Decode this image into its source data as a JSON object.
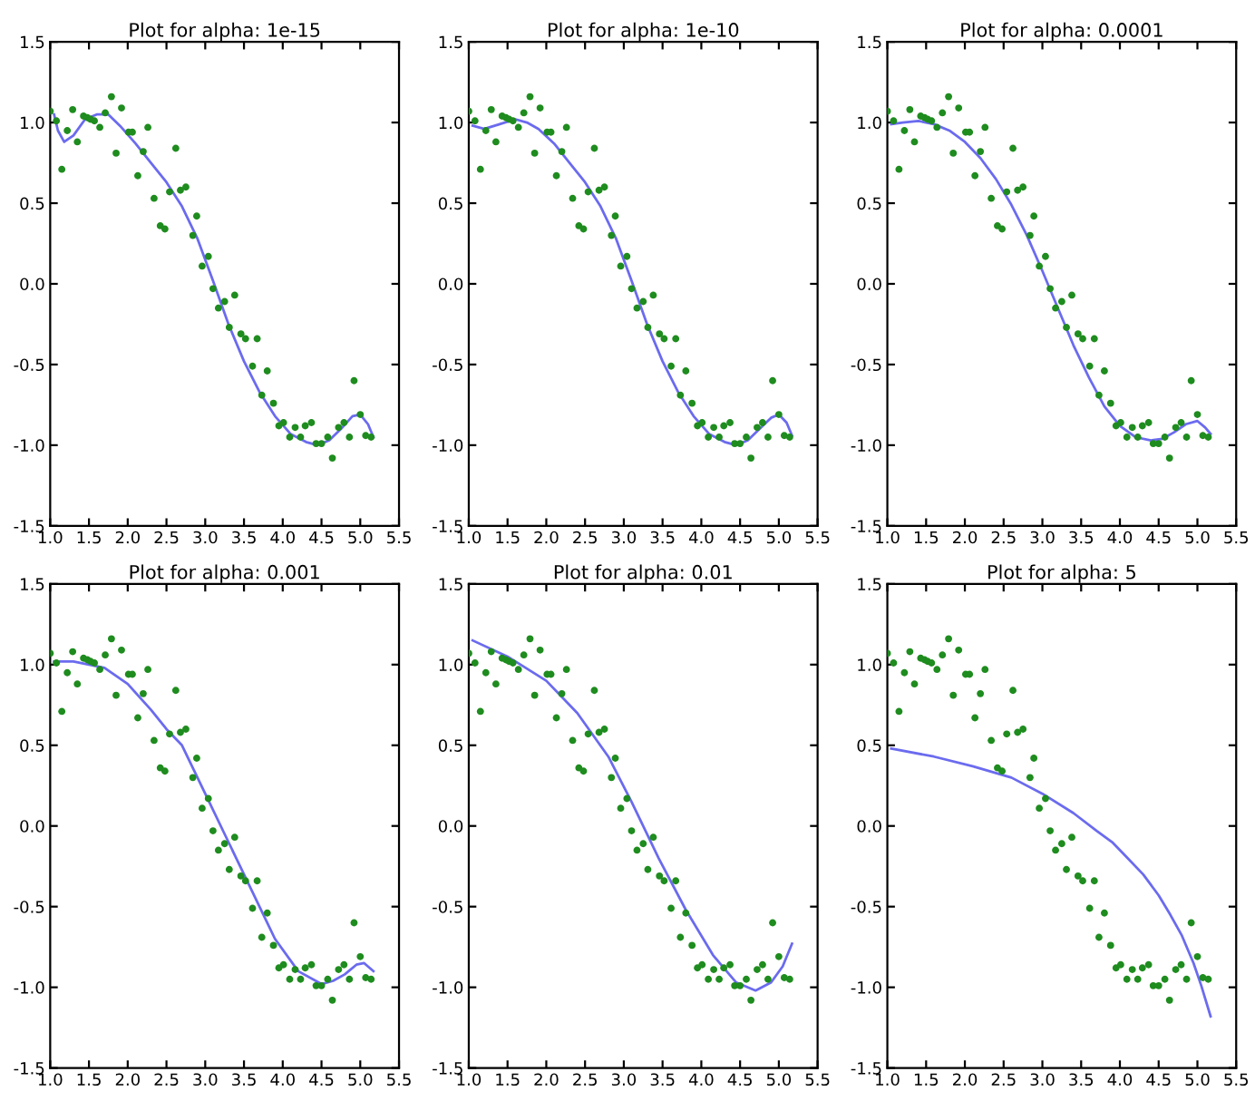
{
  "chart_data": [
    {
      "type": "scatter",
      "title": "Plot for alpha: 1e-15",
      "xlim": [
        1.0,
        5.5
      ],
      "ylim": [
        -1.5,
        1.5
      ],
      "xticks": [
        {
          "value": 1,
          "label": "1.0"
        },
        1.5,
        {
          "value": 2,
          "label": "2.0"
        },
        2.5,
        {
          "value": 3,
          "label": "3.0"
        },
        3.5,
        {
          "value": 4,
          "label": "4.0"
        },
        4.5,
        {
          "value": 5,
          "label": "5.0"
        },
        5.5
      ],
      "yticks": [
        -1.5,
        {
          "value": -1,
          "label": "-1.0"
        },
        -0.5,
        {
          "value": 0,
          "label": "0.0"
        },
        0.5,
        {
          "value": 1,
          "label": "1.0"
        },
        1.5
      ],
      "grid": false,
      "legend": false,
      "series": [
        {
          "marker": "circle",
          "color": "#1e8c1e",
          "x": [
            1.0,
            1.08,
            1.15,
            1.22,
            1.29,
            1.35,
            1.43,
            1.48,
            1.52,
            1.57,
            1.64,
            1.71,
            1.79,
            1.85,
            1.92,
            2.01,
            2.06,
            2.13,
            2.2,
            2.26,
            2.34,
            2.42,
            2.48,
            2.54,
            2.62,
            2.68,
            2.75,
            2.84,
            2.89,
            2.96,
            3.04,
            3.1,
            3.17,
            3.25,
            3.31,
            3.38,
            3.46,
            3.52,
            3.61,
            3.67,
            3.73,
            3.8,
            3.88,
            3.95,
            4.01,
            4.09,
            4.16,
            4.23,
            4.29,
            4.37,
            4.43,
            4.5,
            4.58,
            4.64,
            4.72,
            4.79,
            4.86,
            4.92,
            5.0,
            5.07,
            5.14
          ],
          "values": [
            1.07,
            1.01,
            0.71,
            0.95,
            1.08,
            0.88,
            1.04,
            1.03,
            1.02,
            1.01,
            0.97,
            1.06,
            1.16,
            0.81,
            1.09,
            0.94,
            0.94,
            0.67,
            0.82,
            0.97,
            0.53,
            0.36,
            0.34,
            0.57,
            0.84,
            0.58,
            0.6,
            0.3,
            0.42,
            0.11,
            0.17,
            -0.03,
            -0.15,
            -0.11,
            -0.27,
            -0.07,
            -0.31,
            -0.34,
            -0.51,
            -0.34,
            -0.69,
            -0.54,
            -0.74,
            -0.88,
            -0.86,
            -0.95,
            -0.89,
            -0.95,
            -0.88,
            -0.86,
            -0.99,
            -0.99,
            -0.95,
            -1.08,
            -0.89,
            -0.86,
            -0.95,
            -0.6,
            -0.81,
            -0.94,
            -0.95
          ]
        },
        {
          "type": "line",
          "color": "#6b6bef",
          "x": [
            1.05,
            1.1,
            1.18,
            1.3,
            1.45,
            1.6,
            1.75,
            1.9,
            2.1,
            2.3,
            2.5,
            2.7,
            2.9,
            3.1,
            3.3,
            3.5,
            3.7,
            3.9,
            4.1,
            4.3,
            4.45,
            4.6,
            4.75,
            4.9,
            5.0,
            5.1,
            5.17
          ],
          "values": [
            1.05,
            0.95,
            0.88,
            0.92,
            1.02,
            1.05,
            1.05,
            0.98,
            0.87,
            0.75,
            0.63,
            0.48,
            0.28,
            0.02,
            -0.25,
            -0.48,
            -0.67,
            -0.82,
            -0.93,
            -0.98,
            -1.0,
            -0.97,
            -0.9,
            -0.82,
            -0.81,
            -0.87,
            -0.95
          ]
        }
      ]
    },
    {
      "type": "scatter",
      "title": "Plot for alpha: 1e-10",
      "xlim": [
        1.0,
        5.5
      ],
      "ylim": [
        -1.5,
        1.5
      ],
      "xticks": [
        {
          "value": 1,
          "label": "1.0"
        },
        1.5,
        {
          "value": 2,
          "label": "2.0"
        },
        2.5,
        {
          "value": 3,
          "label": "3.0"
        },
        3.5,
        {
          "value": 4,
          "label": "4.0"
        },
        4.5,
        {
          "value": 5,
          "label": "5.0"
        },
        5.5
      ],
      "yticks": [
        -1.5,
        {
          "value": -1,
          "label": "-1.0"
        },
        -0.5,
        {
          "value": 0,
          "label": "0.0"
        },
        0.5,
        {
          "value": 1,
          "label": "1.0"
        },
        1.5
      ],
      "grid": false,
      "legend": false,
      "series": [
        {
          "marker": "circle",
          "color": "#1e8c1e",
          "x": [
            1.0,
            1.08,
            1.15,
            1.22,
            1.29,
            1.35,
            1.43,
            1.48,
            1.52,
            1.57,
            1.64,
            1.71,
            1.79,
            1.85,
            1.92,
            2.01,
            2.06,
            2.13,
            2.2,
            2.26,
            2.34,
            2.42,
            2.48,
            2.54,
            2.62,
            2.68,
            2.75,
            2.84,
            2.89,
            2.96,
            3.04,
            3.1,
            3.17,
            3.25,
            3.31,
            3.38,
            3.46,
            3.52,
            3.61,
            3.67,
            3.73,
            3.8,
            3.88,
            3.95,
            4.01,
            4.09,
            4.16,
            4.23,
            4.29,
            4.37,
            4.43,
            4.5,
            4.58,
            4.64,
            4.72,
            4.79,
            4.86,
            4.92,
            5.0,
            5.07,
            5.14
          ],
          "values": [
            1.07,
            1.01,
            0.71,
            0.95,
            1.08,
            0.88,
            1.04,
            1.03,
            1.02,
            1.01,
            0.97,
            1.06,
            1.16,
            0.81,
            1.09,
            0.94,
            0.94,
            0.67,
            0.82,
            0.97,
            0.53,
            0.36,
            0.34,
            0.57,
            0.84,
            0.58,
            0.6,
            0.3,
            0.42,
            0.11,
            0.17,
            -0.03,
            -0.15,
            -0.11,
            -0.27,
            -0.07,
            -0.31,
            -0.34,
            -0.51,
            -0.34,
            -0.69,
            -0.54,
            -0.74,
            -0.88,
            -0.86,
            -0.95,
            -0.89,
            -0.95,
            -0.88,
            -0.86,
            -0.99,
            -0.99,
            -0.95,
            -1.08,
            -0.89,
            -0.86,
            -0.95,
            -0.6,
            -0.81,
            -0.94,
            -0.95
          ]
        },
        {
          "type": "line",
          "color": "#6b6bef",
          "x": [
            1.05,
            1.2,
            1.4,
            1.6,
            1.75,
            1.9,
            2.1,
            2.3,
            2.5,
            2.7,
            2.9,
            3.1,
            3.3,
            3.5,
            3.7,
            3.9,
            4.1,
            4.3,
            4.45,
            4.6,
            4.75,
            4.9,
            5.0,
            5.1,
            5.17
          ],
          "values": [
            0.98,
            0.96,
            0.99,
            1.02,
            1.0,
            0.96,
            0.87,
            0.75,
            0.63,
            0.48,
            0.28,
            0.02,
            -0.25,
            -0.48,
            -0.67,
            -0.82,
            -0.93,
            -0.98,
            -1.0,
            -0.97,
            -0.9,
            -0.83,
            -0.81,
            -0.86,
            -0.94
          ]
        }
      ]
    },
    {
      "type": "scatter",
      "title": "Plot for alpha: 0.0001",
      "xlim": [
        1.0,
        5.5
      ],
      "ylim": [
        -1.5,
        1.5
      ],
      "xticks": [
        {
          "value": 1,
          "label": "1.0"
        },
        1.5,
        {
          "value": 2,
          "label": "2.0"
        },
        2.5,
        {
          "value": 3,
          "label": "3.0"
        },
        3.5,
        {
          "value": 4,
          "label": "4.0"
        },
        4.5,
        {
          "value": 5,
          "label": "5.0"
        },
        5.5
      ],
      "yticks": [
        -1.5,
        {
          "value": -1,
          "label": "-1.0"
        },
        -0.5,
        {
          "value": 0,
          "label": "0.0"
        },
        0.5,
        {
          "value": 1,
          "label": "1.0"
        },
        1.5
      ],
      "grid": false,
      "legend": false,
      "series": [
        {
          "marker": "circle",
          "color": "#1e8c1e",
          "x": [
            1.0,
            1.08,
            1.15,
            1.22,
            1.29,
            1.35,
            1.43,
            1.48,
            1.52,
            1.57,
            1.64,
            1.71,
            1.79,
            1.85,
            1.92,
            2.01,
            2.06,
            2.13,
            2.2,
            2.26,
            2.34,
            2.42,
            2.48,
            2.54,
            2.62,
            2.68,
            2.75,
            2.84,
            2.89,
            2.96,
            3.04,
            3.1,
            3.17,
            3.25,
            3.31,
            3.38,
            3.46,
            3.52,
            3.61,
            3.67,
            3.73,
            3.8,
            3.88,
            3.95,
            4.01,
            4.09,
            4.16,
            4.23,
            4.29,
            4.37,
            4.43,
            4.5,
            4.58,
            4.64,
            4.72,
            4.79,
            4.86,
            4.92,
            5.0,
            5.07,
            5.14
          ],
          "values": [
            1.07,
            1.01,
            0.71,
            0.95,
            1.08,
            0.88,
            1.04,
            1.03,
            1.02,
            1.01,
            0.97,
            1.06,
            1.16,
            0.81,
            1.09,
            0.94,
            0.94,
            0.67,
            0.82,
            0.97,
            0.53,
            0.36,
            0.34,
            0.57,
            0.84,
            0.58,
            0.6,
            0.3,
            0.42,
            0.11,
            0.17,
            -0.03,
            -0.15,
            -0.11,
            -0.27,
            -0.07,
            -0.31,
            -0.34,
            -0.51,
            -0.34,
            -0.69,
            -0.54,
            -0.74,
            -0.88,
            -0.86,
            -0.95,
            -0.89,
            -0.95,
            -0.88,
            -0.86,
            -0.99,
            -0.99,
            -0.95,
            -1.08,
            -0.89,
            -0.86,
            -0.95,
            -0.6,
            -0.81,
            -0.94,
            -0.95
          ]
        },
        {
          "type": "line",
          "color": "#6b6bef",
          "x": [
            1.05,
            1.2,
            1.4,
            1.6,
            1.8,
            2.0,
            2.2,
            2.4,
            2.6,
            2.8,
            3.0,
            3.2,
            3.4,
            3.6,
            3.8,
            4.0,
            4.2,
            4.4,
            4.55,
            4.7,
            4.85,
            5.0,
            5.1,
            5.17
          ],
          "values": [
            0.99,
            1.0,
            1.01,
            0.99,
            0.95,
            0.88,
            0.78,
            0.65,
            0.49,
            0.3,
            0.08,
            -0.15,
            -0.38,
            -0.58,
            -0.76,
            -0.88,
            -0.95,
            -0.97,
            -0.96,
            -0.92,
            -0.87,
            -0.85,
            -0.89,
            -0.93
          ]
        }
      ]
    },
    {
      "type": "scatter",
      "title": "Plot for alpha: 0.001",
      "xlim": [
        1.0,
        5.5
      ],
      "ylim": [
        -1.5,
        1.5
      ],
      "xticks": [
        {
          "value": 1,
          "label": "1.0"
        },
        1.5,
        {
          "value": 2,
          "label": "2.0"
        },
        2.5,
        {
          "value": 3,
          "label": "3.0"
        },
        3.5,
        {
          "value": 4,
          "label": "4.0"
        },
        4.5,
        {
          "value": 5,
          "label": "5.0"
        },
        5.5
      ],
      "yticks": [
        -1.5,
        {
          "value": -1,
          "label": "-1.0"
        },
        -0.5,
        {
          "value": 0,
          "label": "0.0"
        },
        0.5,
        {
          "value": 1,
          "label": "1.0"
        },
        1.5
      ],
      "grid": false,
      "legend": false,
      "series": [
        {
          "marker": "circle",
          "color": "#1e8c1e",
          "x": [
            1.0,
            1.08,
            1.15,
            1.22,
            1.29,
            1.35,
            1.43,
            1.48,
            1.52,
            1.57,
            1.64,
            1.71,
            1.79,
            1.85,
            1.92,
            2.01,
            2.06,
            2.13,
            2.2,
            2.26,
            2.34,
            2.42,
            2.48,
            2.54,
            2.62,
            2.68,
            2.75,
            2.84,
            2.89,
            2.96,
            3.04,
            3.1,
            3.17,
            3.25,
            3.31,
            3.38,
            3.46,
            3.52,
            3.61,
            3.67,
            3.73,
            3.8,
            3.88,
            3.95,
            4.01,
            4.09,
            4.16,
            4.23,
            4.29,
            4.37,
            4.43,
            4.5,
            4.58,
            4.64,
            4.72,
            4.79,
            4.86,
            4.92,
            5.0,
            5.07,
            5.14
          ],
          "values": [
            1.07,
            1.01,
            0.71,
            0.95,
            1.08,
            0.88,
            1.04,
            1.03,
            1.02,
            1.01,
            0.97,
            1.06,
            1.16,
            0.81,
            1.09,
            0.94,
            0.94,
            0.67,
            0.82,
            0.97,
            0.53,
            0.36,
            0.34,
            0.57,
            0.84,
            0.58,
            0.6,
            0.3,
            0.42,
            0.11,
            0.17,
            -0.03,
            -0.15,
            -0.11,
            -0.27,
            -0.07,
            -0.31,
            -0.34,
            -0.51,
            -0.34,
            -0.69,
            -0.54,
            -0.74,
            -0.88,
            -0.86,
            -0.95,
            -0.89,
            -0.95,
            -0.88,
            -0.86,
            -0.99,
            -0.99,
            -0.95,
            -1.08,
            -0.89,
            -0.86,
            -0.95,
            -0.6,
            -0.81,
            -0.94,
            -0.95
          ]
        },
        {
          "type": "line",
          "color": "#6b6bef",
          "x": [
            1.05,
            1.3,
            1.5,
            1.7,
            2.0,
            2.3,
            2.5,
            2.7,
            3.0,
            3.3,
            3.6,
            3.9,
            4.2,
            4.5,
            4.65,
            4.8,
            4.95,
            5.05,
            5.17
          ],
          "values": [
            1.02,
            1.02,
            1.0,
            0.98,
            0.88,
            0.72,
            0.6,
            0.5,
            0.2,
            -0.1,
            -0.4,
            -0.7,
            -0.9,
            -0.98,
            -0.96,
            -0.92,
            -0.86,
            -0.85,
            -0.9
          ]
        }
      ]
    },
    {
      "type": "scatter",
      "title": "Plot for alpha: 0.01",
      "xlim": [
        1.0,
        5.5
      ],
      "ylim": [
        -1.5,
        1.5
      ],
      "xticks": [
        {
          "value": 1,
          "label": "1.0"
        },
        1.5,
        {
          "value": 2,
          "label": "2.0"
        },
        2.5,
        {
          "value": 3,
          "label": "3.0"
        },
        3.5,
        {
          "value": 4,
          "label": "4.0"
        },
        4.5,
        {
          "value": 5,
          "label": "5.0"
        },
        5.5
      ],
      "yticks": [
        -1.5,
        {
          "value": -1,
          "label": "-1.0"
        },
        -0.5,
        {
          "value": 0,
          "label": "0.0"
        },
        0.5,
        {
          "value": 1,
          "label": "1.0"
        },
        1.5
      ],
      "grid": false,
      "legend": false,
      "series": [
        {
          "marker": "circle",
          "color": "#1e8c1e",
          "x": [
            1.0,
            1.08,
            1.15,
            1.22,
            1.29,
            1.35,
            1.43,
            1.48,
            1.52,
            1.57,
            1.64,
            1.71,
            1.79,
            1.85,
            1.92,
            2.01,
            2.06,
            2.13,
            2.2,
            2.26,
            2.34,
            2.42,
            2.48,
            2.54,
            2.62,
            2.68,
            2.75,
            2.84,
            2.89,
            2.96,
            3.04,
            3.1,
            3.17,
            3.25,
            3.31,
            3.38,
            3.46,
            3.52,
            3.61,
            3.67,
            3.73,
            3.8,
            3.88,
            3.95,
            4.01,
            4.09,
            4.16,
            4.23,
            4.29,
            4.37,
            4.43,
            4.5,
            4.58,
            4.64,
            4.72,
            4.79,
            4.86,
            4.92,
            5.0,
            5.07,
            5.14
          ],
          "values": [
            1.07,
            1.01,
            0.71,
            0.95,
            1.08,
            0.88,
            1.04,
            1.03,
            1.02,
            1.01,
            0.97,
            1.06,
            1.16,
            0.81,
            1.09,
            0.94,
            0.94,
            0.67,
            0.82,
            0.97,
            0.53,
            0.36,
            0.34,
            0.57,
            0.84,
            0.58,
            0.6,
            0.3,
            0.42,
            0.11,
            0.17,
            -0.03,
            -0.15,
            -0.11,
            -0.27,
            -0.07,
            -0.31,
            -0.34,
            -0.51,
            -0.34,
            -0.69,
            -0.54,
            -0.74,
            -0.88,
            -0.86,
            -0.95,
            -0.89,
            -0.95,
            -0.88,
            -0.86,
            -0.99,
            -0.99,
            -0.95,
            -1.08,
            -0.89,
            -0.86,
            -0.95,
            -0.6,
            -0.81,
            -0.94,
            -0.95
          ]
        },
        {
          "type": "line",
          "color": "#6b6bef",
          "x": [
            1.05,
            1.5,
            2.0,
            2.4,
            2.8,
            3.1,
            3.45,
            3.8,
            4.15,
            4.45,
            4.7,
            4.9,
            5.05,
            5.17
          ],
          "values": [
            1.15,
            1.05,
            0.9,
            0.7,
            0.43,
            0.15,
            -0.2,
            -0.52,
            -0.8,
            -0.97,
            -1.02,
            -0.97,
            -0.87,
            -0.73
          ]
        }
      ]
    },
    {
      "type": "scatter",
      "title": "Plot for alpha: 5",
      "xlim": [
        1.0,
        5.5
      ],
      "ylim": [
        -1.5,
        1.5
      ],
      "xticks": [
        {
          "value": 1,
          "label": "1.0"
        },
        1.5,
        {
          "value": 2,
          "label": "2.0"
        },
        2.5,
        {
          "value": 3,
          "label": "3.0"
        },
        3.5,
        {
          "value": 4,
          "label": "4.0"
        },
        4.5,
        {
          "value": 5,
          "label": "5.0"
        },
        5.5
      ],
      "yticks": [
        -1.5,
        {
          "value": -1,
          "label": "-1.0"
        },
        -0.5,
        {
          "value": 0,
          "label": "0.0"
        },
        0.5,
        {
          "value": 1,
          "label": "1.0"
        },
        1.5
      ],
      "grid": false,
      "legend": false,
      "series": [
        {
          "marker": "circle",
          "color": "#1e8c1e",
          "x": [
            1.0,
            1.08,
            1.15,
            1.22,
            1.29,
            1.35,
            1.43,
            1.48,
            1.52,
            1.57,
            1.64,
            1.71,
            1.79,
            1.85,
            1.92,
            2.01,
            2.06,
            2.13,
            2.2,
            2.26,
            2.34,
            2.42,
            2.48,
            2.54,
            2.62,
            2.68,
            2.75,
            2.84,
            2.89,
            2.96,
            3.04,
            3.1,
            3.17,
            3.25,
            3.31,
            3.38,
            3.46,
            3.52,
            3.61,
            3.67,
            3.73,
            3.8,
            3.88,
            3.95,
            4.01,
            4.09,
            4.16,
            4.23,
            4.29,
            4.37,
            4.43,
            4.5,
            4.58,
            4.64,
            4.72,
            4.79,
            4.86,
            4.92,
            5.0,
            5.07,
            5.14
          ],
          "values": [
            1.07,
            1.01,
            0.71,
            0.95,
            1.08,
            0.88,
            1.04,
            1.03,
            1.02,
            1.01,
            0.97,
            1.06,
            1.16,
            0.81,
            1.09,
            0.94,
            0.94,
            0.67,
            0.82,
            0.97,
            0.53,
            0.36,
            0.34,
            0.57,
            0.84,
            0.58,
            0.6,
            0.3,
            0.42,
            0.11,
            0.17,
            -0.03,
            -0.15,
            -0.11,
            -0.27,
            -0.07,
            -0.31,
            -0.34,
            -0.51,
            -0.34,
            -0.69,
            -0.54,
            -0.74,
            -0.88,
            -0.86,
            -0.95,
            -0.89,
            -0.95,
            -0.88,
            -0.86,
            -0.99,
            -0.99,
            -0.95,
            -1.08,
            -0.89,
            -0.86,
            -0.95,
            -0.6,
            -0.81,
            -0.94,
            -0.95
          ]
        },
        {
          "type": "line",
          "color": "#6b6bef",
          "x": [
            1.05,
            1.6,
            2.1,
            2.6,
            3.0,
            3.4,
            3.7,
            3.9,
            4.1,
            4.3,
            4.5,
            4.65,
            4.8,
            4.95,
            5.05,
            5.17
          ],
          "values": [
            0.48,
            0.43,
            0.37,
            0.3,
            0.2,
            0.08,
            -0.03,
            -0.1,
            -0.2,
            -0.3,
            -0.43,
            -0.55,
            -0.68,
            -0.85,
            -0.99,
            -1.18
          ]
        }
      ]
    }
  ]
}
